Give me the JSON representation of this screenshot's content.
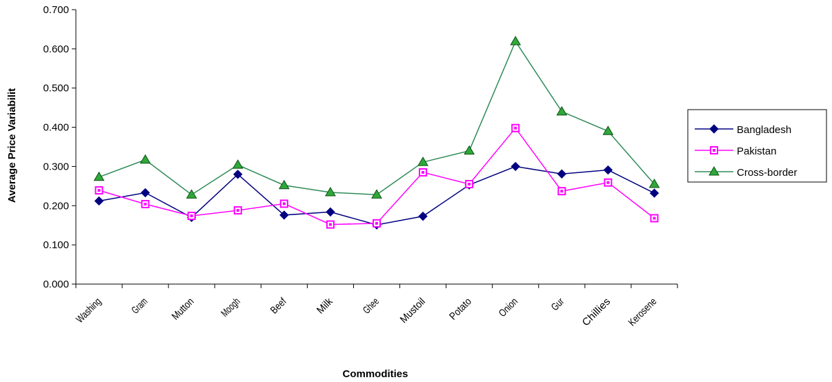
{
  "chart_data": {
    "type": "line",
    "categories": [
      "Washing",
      "Gram",
      "Mutton",
      "Moogh",
      "Beef",
      "Milk",
      "Ghee",
      "Mustoil",
      "Potato",
      "Onion",
      "Gur",
      "Chillies",
      "Kerosene"
    ],
    "series": [
      {
        "name": "Bangladesh",
        "color": "#000080",
        "marker": "diamond",
        "values": [
          0.212,
          0.233,
          0.17,
          0.28,
          0.176,
          0.184,
          0.151,
          0.173,
          0.253,
          0.3,
          0.281,
          0.291,
          0.232
        ]
      },
      {
        "name": "Pakistan",
        "color": "#FF00FF",
        "marker": "square",
        "values": [
          0.239,
          0.204,
          0.174,
          0.188,
          0.205,
          0.152,
          0.155,
          0.285,
          0.255,
          0.398,
          0.237,
          0.259,
          0.168
        ]
      },
      {
        "name": "Cross-border",
        "color": "#2E8B57",
        "marker": "triangle",
        "values": [
          0.273,
          0.317,
          0.228,
          0.304,
          0.252,
          0.234,
          0.228,
          0.311,
          0.34,
          0.619,
          0.44,
          0.39,
          0.255
        ]
      }
    ],
    "xlabel": "Commodities",
    "ylabel": "Average Price Variabilit",
    "ylim": [
      0,
      0.7
    ],
    "yticks": [
      "0.000",
      "0.100",
      "0.200",
      "0.300",
      "0.400",
      "0.500",
      "0.600",
      "0.700"
    ],
    "grid": false,
    "legend_position": "right"
  }
}
